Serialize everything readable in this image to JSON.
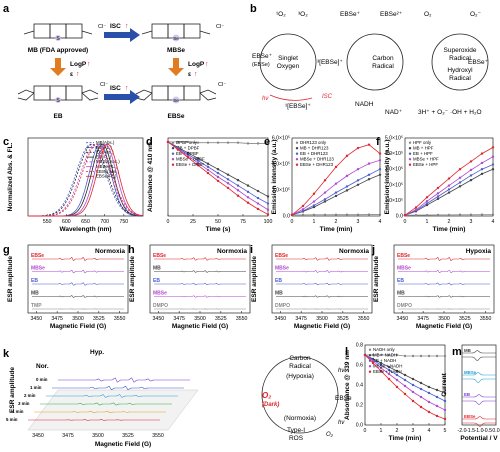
{
  "figure": {
    "panel_letters": [
      "a",
      "b",
      "c",
      "d",
      "e",
      "f",
      "g",
      "h",
      "i",
      "j",
      "k",
      "l",
      "m"
    ]
  },
  "panel_a": {
    "mb_label": "MB (FDA approved)",
    "mbse_label": "MBSe",
    "eb_label": "EB",
    "ebse_label": "EBSe",
    "isc_label": "ISC",
    "logp_label": "LogP",
    "epsilon_label": "ε",
    "counterion": "Cl⁻",
    "heteroatom_s": "S",
    "heteroatom_se": "Se"
  },
  "panel_b": {
    "singlet_oxygen": "Singlet\nOxygen",
    "carbon_radical": "Carbon\nRadical",
    "superoxide_radical": "Superoxide\nRadical",
    "hydroxyl_radical": "Hydroxyl\nRadical",
    "o2_singlet": "¹O₂",
    "o2_triplet": "³O₂",
    "ebse_plus": "EBSe⁺",
    "ebse_paren": "(EBSe)",
    "ebse_2plus": "EBSe²⁺",
    "o2": "O₂",
    "o2_minus": "O₂⁻",
    "triplet": "³[EBSe]⁺",
    "singlet": "¹[EBSe]⁺",
    "hv": "hν",
    "isc": "ISC",
    "nadh": "NADH",
    "nad": "NAD⁺",
    "hydroxyl_eq": "3H⁺ + O₂⁻ ·OH + H₂O"
  },
  "chart_data": [
    {
      "panel": "c",
      "type": "line",
      "xlabel": "Wavelength (nm)",
      "ylabel": "Normalized Abs. & FL.",
      "xlim": [
        500,
        800
      ],
      "xticks": [
        550,
        600,
        650,
        700,
        750
      ],
      "series": [
        {
          "name": "MB(Abs.)",
          "center": 664,
          "color": "#4a5fd0",
          "dashed": true
        },
        {
          "name": "MB(FL.)",
          "center": 688,
          "color": "#4a5fd0",
          "dashed": false
        },
        {
          "name": "EB(Abs.)",
          "center": 668,
          "color": "#222222",
          "dashed": true
        },
        {
          "name": "EB(FL.)",
          "center": 694,
          "color": "#222222",
          "dashed": false
        },
        {
          "name": "MBSe(Abs.)",
          "center": 676,
          "color": "#b04ad0",
          "dashed": true
        },
        {
          "name": "MBSe(FL.)",
          "center": 702,
          "color": "#b04ad0",
          "dashed": false
        },
        {
          "name": "EBSe(Abs.)",
          "center": 680,
          "color": "#e0262b",
          "dashed": true
        },
        {
          "name": "EBSe(FL.)",
          "center": 708,
          "color": "#e0262b",
          "dashed": false
        }
      ]
    },
    {
      "panel": "d",
      "type": "line",
      "xlabel": "Time (s)",
      "ylabel": "Absorbance @ 410 nm",
      "xlim": [
        0,
        100
      ],
      "xticks": [
        0,
        25,
        50,
        75,
        100
      ],
      "ylim": [
        0,
        1
      ],
      "series": [
        {
          "name": "DPBF only",
          "color": "#888888",
          "x": [
            0,
            10,
            20,
            30,
            40,
            50,
            60,
            70,
            80,
            90,
            100
          ],
          "y": [
            0.95,
            0.95,
            0.95,
            0.94,
            0.94,
            0.94,
            0.94,
            0.94,
            0.93,
            0.93,
            0.93
          ]
        },
        {
          "name": "MB + DPBF",
          "color": "#444444",
          "x": [
            0,
            10,
            20,
            30,
            40,
            50,
            60,
            70,
            80,
            90,
            100
          ],
          "y": [
            0.95,
            0.88,
            0.81,
            0.74,
            0.67,
            0.6,
            0.53,
            0.46,
            0.39,
            0.32,
            0.25
          ]
        },
        {
          "name": "EB + DPBF",
          "color": "#4a5fd0",
          "x": [
            0,
            10,
            20,
            30,
            40,
            50,
            60,
            70,
            80,
            90,
            100
          ],
          "y": [
            0.95,
            0.87,
            0.79,
            0.71,
            0.63,
            0.55,
            0.47,
            0.39,
            0.31,
            0.23,
            0.16
          ]
        },
        {
          "name": "MBSe + DPBF",
          "color": "#b04ad0",
          "x": [
            0,
            10,
            20,
            30,
            40,
            50,
            60,
            70,
            80,
            90,
            100
          ],
          "y": [
            0.95,
            0.86,
            0.77,
            0.68,
            0.59,
            0.5,
            0.42,
            0.33,
            0.24,
            0.16,
            0.08
          ]
        },
        {
          "name": "EBSe + DPBF",
          "color": "#e0262b",
          "x": [
            0,
            10,
            20,
            30,
            40,
            50,
            60,
            70,
            80,
            90,
            100
          ],
          "y": [
            0.95,
            0.85,
            0.75,
            0.65,
            0.55,
            0.45,
            0.36,
            0.26,
            0.17,
            0.09,
            0.02
          ]
        }
      ]
    },
    {
      "panel": "e",
      "type": "line",
      "xlabel": "Time (min)",
      "ylabel": "Emission intensity (a.u.)",
      "xlim": [
        0,
        4
      ],
      "xticks": [
        0,
        1,
        2,
        3,
        4
      ],
      "ylim": [
        0,
        700000
      ],
      "yticks": [
        "0.0",
        "2.0×10⁵",
        "4.0×10⁵",
        "6.0×10⁵"
      ],
      "series": [
        {
          "name": "DHR123 only",
          "color": "#888888",
          "x": [
            0,
            0.5,
            1,
            1.5,
            2,
            2.5,
            3,
            3.5,
            4
          ],
          "y": [
            10000,
            10000,
            11000,
            11000,
            12000,
            12000,
            12000,
            13000,
            13000
          ]
        },
        {
          "name": "MB + DHR123",
          "color": "#444444",
          "x": [
            0,
            0.5,
            1,
            1.5,
            2,
            2.5,
            3,
            3.5,
            4
          ],
          "y": [
            10000,
            40000,
            80000,
            130000,
            180000,
            230000,
            280000,
            330000,
            370000
          ]
        },
        {
          "name": "EB + DHR123",
          "color": "#4a5fd0",
          "x": [
            0,
            0.5,
            1,
            1.5,
            2,
            2.5,
            3,
            3.5,
            4
          ],
          "y": [
            10000,
            45000,
            95000,
            150000,
            210000,
            265000,
            320000,
            370000,
            420000
          ]
        },
        {
          "name": "MBSe + DHR123",
          "color": "#b04ad0",
          "x": [
            0,
            0.5,
            1,
            1.5,
            2,
            2.5,
            3,
            3.5,
            4
          ],
          "y": [
            10000,
            60000,
            130000,
            210000,
            290000,
            360000,
            420000,
            470000,
            500000
          ]
        },
        {
          "name": "EBSe + DHR123",
          "color": "#e0262b",
          "x": [
            0,
            0.5,
            1,
            1.5,
            2,
            2.5,
            3,
            3.5,
            4
          ],
          "y": [
            10000,
            90000,
            200000,
            320000,
            440000,
            540000,
            610000,
            640000,
            560000
          ]
        }
      ]
    },
    {
      "panel": "f",
      "type": "line",
      "xlabel": "Time (min)",
      "ylabel": "Emission intensity (a.u.)",
      "xlim": [
        0,
        4
      ],
      "xticks": [
        0,
        1,
        2,
        3,
        4
      ],
      "ylim": [
        0,
        500000
      ],
      "yticks": [
        "0.0",
        "1.0×10⁵",
        "2.0×10⁵",
        "3.0×10⁵",
        "4.0×10⁵",
        "5.0×10⁵"
      ],
      "series": [
        {
          "name": "HPF only",
          "color": "#888888",
          "x": [
            0,
            0.5,
            1,
            1.5,
            2,
            2.5,
            3,
            3.5,
            4
          ],
          "y": [
            5000,
            6000,
            6000,
            7000,
            7000,
            8000,
            8000,
            9000,
            9000
          ]
        },
        {
          "name": "MB + HPF",
          "color": "#444444",
          "x": [
            0,
            0.5,
            1,
            1.5,
            2,
            2.5,
            3,
            3.5,
            4
          ],
          "y": [
            5000,
            30000,
            70000,
            110000,
            150000,
            190000,
            230000,
            270000,
            300000
          ]
        },
        {
          "name": "EB + HPF",
          "color": "#4a5fd0",
          "x": [
            0,
            0.5,
            1,
            1.5,
            2,
            2.5,
            3,
            3.5,
            4
          ],
          "y": [
            5000,
            35000,
            80000,
            125000,
            170000,
            215000,
            260000,
            300000,
            330000
          ]
        },
        {
          "name": "MBSe + HPF",
          "color": "#b04ad0",
          "x": [
            0,
            0.5,
            1,
            1.5,
            2,
            2.5,
            3,
            3.5,
            4
          ],
          "y": [
            5000,
            40000,
            95000,
            145000,
            195000,
            245000,
            295000,
            340000,
            380000
          ]
        },
        {
          "name": "EBSe + HPF",
          "color": "#e0262b",
          "x": [
            0,
            0.5,
            1,
            1.5,
            2,
            2.5,
            3,
            3.5,
            4
          ],
          "y": [
            5000,
            55000,
            120000,
            180000,
            240000,
            300000,
            350000,
            400000,
            440000
          ]
        }
      ]
    },
    {
      "panel": "g",
      "type": "line",
      "title": "Normoxia",
      "xlabel": "Magnetic Field (G)",
      "ylabel": "ESR amplitude",
      "xticks": [
        3450,
        3475,
        3500,
        3525,
        3550
      ],
      "traces": [
        {
          "name": "EBSe",
          "color": "#e0262b",
          "amp": 1.0
        },
        {
          "name": "MBSe",
          "color": "#b04ad0",
          "amp": 0.85
        },
        {
          "name": "EB",
          "color": "#4a5fd0",
          "amp": 0.75
        },
        {
          "name": "MB",
          "color": "#444444",
          "amp": 0.55
        },
        {
          "name": "TMP",
          "color": "#888888",
          "amp": 0.03
        }
      ]
    },
    {
      "panel": "h",
      "type": "line",
      "title": "Normoxia",
      "xlabel": "Magnetic Field (G)",
      "ylabel": "ESR amplitude",
      "xticks": [
        3450,
        3475,
        3500,
        3525,
        3550
      ],
      "traces": [
        {
          "name": "EBSe",
          "color": "#e0262b",
          "amp": 0.75
        },
        {
          "name": "MB",
          "color": "#444444",
          "amp": 0.5
        },
        {
          "name": "EB",
          "color": "#4a5fd0",
          "amp": 0.5
        },
        {
          "name": "MBSe",
          "color": "#b04ad0",
          "amp": 0.45
        },
        {
          "name": "DMPO",
          "color": "#888888",
          "amp": 0.03
        }
      ]
    },
    {
      "panel": "i",
      "type": "line",
      "title": "Normoxia",
      "xlabel": "Magnetic Field (G)",
      "ylabel": "ESR amplitude",
      "xticks": [
        3450,
        3475,
        3500,
        3525,
        3550
      ],
      "traces": [
        {
          "name": "EBSe",
          "color": "#e0262b",
          "amp": 0.8
        },
        {
          "name": "MBSe",
          "color": "#b04ad0",
          "amp": 0.6
        },
        {
          "name": "EB",
          "color": "#4a5fd0",
          "amp": 0.5
        },
        {
          "name": "MB",
          "color": "#444444",
          "amp": 0.4
        },
        {
          "name": "DMPO",
          "color": "#888888",
          "amp": 0.03
        }
      ]
    },
    {
      "panel": "j",
      "type": "line",
      "title": "Hypoxia",
      "xlabel": "Magnetic Field (G)",
      "ylabel": "ESR amplitude",
      "xticks": [
        3450,
        3475,
        3500,
        3525,
        3550
      ],
      "traces": [
        {
          "name": "EBSe",
          "color": "#e0262b",
          "amp": 1.0
        },
        {
          "name": "MBSe",
          "color": "#b04ad0",
          "amp": 0.7
        },
        {
          "name": "EB",
          "color": "#4a5fd0",
          "amp": 0.6
        },
        {
          "name": "MB",
          "color": "#444444",
          "amp": 0.45
        },
        {
          "name": "DMPO",
          "color": "#888888",
          "amp": 0.03
        }
      ]
    },
    {
      "panel": "k",
      "type": "line",
      "xlabel": "Magnetic Field (G)",
      "ylabel": "ESR amplitude",
      "xticks": [
        3450,
        3475,
        3500,
        3525,
        3550
      ],
      "corner_labels": [
        "Hyp.",
        "Nor."
      ],
      "traces": [
        {
          "name": "0 min",
          "color": "#7a3fd0",
          "amp": 1.0
        },
        {
          "name": "1 min",
          "color": "#3a55d0",
          "amp": 0.8
        },
        {
          "name": "2 min",
          "color": "#20a0d0",
          "amp": 0.65
        },
        {
          "name": "3 min",
          "color": "#30b040",
          "amp": 0.5
        },
        {
          "name": "4 min",
          "color": "#e0a020",
          "amp": 0.35
        },
        {
          "name": "5 min",
          "color": "#e0262b",
          "amp": 0.2
        }
      ],
      "cycle": {
        "carbon_radical": "Carbon\nRadical",
        "hypoxia": "(Hypoxia)",
        "o2_dark": "O₂\n(Dark)",
        "normoxia": "(Normoxia)",
        "type1_ros": "Type-I\nROS",
        "ebse": "EBSe",
        "hv": "hν",
        "o2": "O₂"
      }
    },
    {
      "panel": "l",
      "type": "line",
      "xlabel": "Time (min)",
      "ylabel": "Absorbance @ 339 nm",
      "xlim": [
        0,
        5
      ],
      "xticks": [
        0,
        1,
        2,
        3,
        4,
        5
      ],
      "ylim": [
        0,
        0.8
      ],
      "yticks": [
        "0.0",
        "0.2",
        "0.4",
        "0.6",
        "0.8"
      ],
      "series": [
        {
          "name": "NADH only",
          "color": "#888888",
          "x": [
            0,
            0.5,
            1,
            1.5,
            2,
            2.5,
            3,
            3.5,
            4,
            4.5,
            5
          ],
          "y": [
            0.7,
            0.7,
            0.7,
            0.7,
            0.7,
            0.69,
            0.69,
            0.69,
            0.69,
            0.69,
            0.69
          ]
        },
        {
          "name": "MB + NADH",
          "color": "#444444",
          "x": [
            0,
            0.5,
            1,
            1.5,
            2,
            2.5,
            3,
            3.5,
            4,
            4.5,
            5
          ],
          "y": [
            0.7,
            0.66,
            0.62,
            0.58,
            0.54,
            0.5,
            0.46,
            0.42,
            0.38,
            0.35,
            0.32
          ]
        },
        {
          "name": "EB + NADH",
          "color": "#4a5fd0",
          "x": [
            0,
            0.5,
            1,
            1.5,
            2,
            2.5,
            3,
            3.5,
            4,
            4.5,
            5
          ],
          "y": [
            0.7,
            0.65,
            0.6,
            0.55,
            0.5,
            0.45,
            0.4,
            0.36,
            0.32,
            0.28,
            0.24
          ]
        },
        {
          "name": "MBSe + NADH",
          "color": "#b04ad0",
          "x": [
            0,
            0.5,
            1,
            1.5,
            2,
            2.5,
            3,
            3.5,
            4,
            4.5,
            5
          ],
          "y": [
            0.7,
            0.64,
            0.57,
            0.51,
            0.45,
            0.39,
            0.33,
            0.28,
            0.23,
            0.19,
            0.15
          ]
        },
        {
          "name": "EBSe + NADH",
          "color": "#e0262b",
          "x": [
            0,
            0.5,
            1,
            1.5,
            2,
            2.5,
            3,
            3.5,
            4,
            4.5,
            5
          ],
          "y": [
            0.7,
            0.62,
            0.54,
            0.46,
            0.38,
            0.31,
            0.24,
            0.18,
            0.13,
            0.09,
            0.06
          ]
        }
      ]
    },
    {
      "panel": "m",
      "type": "line",
      "xlabel": "Potential / V",
      "ylabel": "Current",
      "xlim": [
        -2.0,
        0.0
      ],
      "xticks": [
        -2.0,
        -1.5,
        -1.0,
        -0.5,
        0.0
      ],
      "traces": [
        {
          "name": "MB",
          "color": "#444444"
        },
        {
          "name": "MBSe",
          "color": "#20a0d0"
        },
        {
          "name": "EB",
          "color": "#7a3fd0"
        },
        {
          "name": "EBSe",
          "color": "#e0262b"
        }
      ]
    }
  ]
}
